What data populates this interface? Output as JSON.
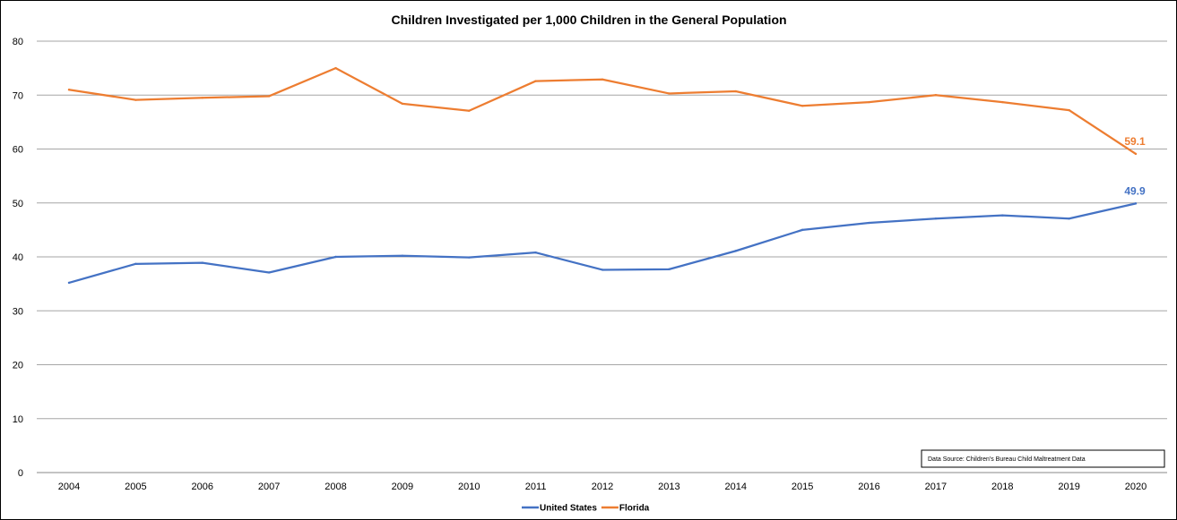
{
  "chart_data": {
    "type": "line",
    "title": "Children Investigated per 1,000 Children in the General Population",
    "xlabel": "",
    "ylabel": "",
    "x": [
      "2004",
      "2005",
      "2006",
      "2007",
      "2008",
      "2009",
      "2010",
      "2011",
      "2012",
      "2013",
      "2014",
      "2015",
      "2016",
      "2017",
      "2018",
      "2019",
      "2020"
    ],
    "ylim": [
      0,
      80
    ],
    "yticks": [
      "0",
      "10",
      "20",
      "30",
      "40",
      "50",
      "60",
      "70",
      "80"
    ],
    "grid": true,
    "legend_position": "bottom-center",
    "series": [
      {
        "name": "United States",
        "color": "#4472C4",
        "values": [
          35.2,
          38.7,
          38.9,
          37.1,
          40.0,
          40.2,
          39.9,
          40.8,
          37.6,
          37.7,
          41.1,
          45.0,
          46.3,
          47.1,
          47.7,
          47.1,
          49.9
        ],
        "end_label": "49.9"
      },
      {
        "name": "Florida",
        "color": "#ED7D31",
        "values": [
          71.0,
          69.1,
          69.5,
          69.8,
          75.0,
          68.4,
          67.1,
          72.6,
          72.9,
          70.3,
          70.7,
          68.0,
          68.7,
          70.0,
          68.7,
          67.2,
          59.1
        ],
        "end_label": "59.1"
      }
    ],
    "annotation": "Data Source:  Children's Bureau Child Maltreatment Data"
  }
}
